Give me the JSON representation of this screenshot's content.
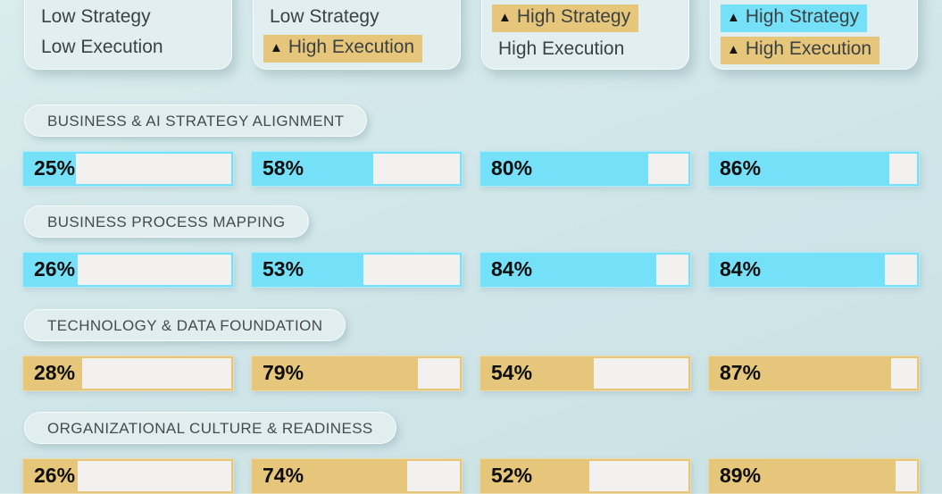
{
  "glyphs": {
    "up_triangle": "▲"
  },
  "colors": {
    "background": "#cfe5e8",
    "gold_highlight": "#e6c67a",
    "cyan_highlight": "#74e1f8",
    "bar_track": "#f2f1ef",
    "card_bg": "#e2eff1",
    "header_text": "#3c4143",
    "percent_text": "#0e0e0e"
  },
  "quadrants": [
    {
      "line1": {
        "text": "Low Strategy",
        "highlight": "none",
        "arrow": false
      },
      "line2": {
        "text": "Low Execution",
        "highlight": "none",
        "arrow": false
      }
    },
    {
      "line1": {
        "text": "Low Strategy",
        "highlight": "none",
        "arrow": false
      },
      "line2": {
        "text": "High Execution",
        "highlight": "gold",
        "arrow": true
      }
    },
    {
      "line1": {
        "text": "High Strategy",
        "highlight": "gold",
        "arrow": true
      },
      "line2": {
        "text": "High Execution",
        "highlight": "none",
        "arrow": false
      }
    },
    {
      "line1": {
        "text": "High Strategy",
        "highlight": "cyan",
        "arrow": true
      },
      "line2": {
        "text": "High Execution",
        "highlight": "gold",
        "arrow": true
      }
    }
  ],
  "sections": [
    {
      "category": "BUSINESS & AI STRATEGY ALIGNMENT",
      "bar_color": "cyan",
      "bars": [
        {
          "label": "25%",
          "value": 25
        },
        {
          "label": "58%",
          "value": 58
        },
        {
          "label": "80%",
          "value": 80
        },
        {
          "label": "86%",
          "value": 86
        }
      ]
    },
    {
      "category": "BUSINESS PROCESS MAPPING",
      "bar_color": "cyan",
      "bars": [
        {
          "label": "26%",
          "value": 26
        },
        {
          "label": "53%",
          "value": 53
        },
        {
          "label": "84%",
          "value": 84
        },
        {
          "label": "84%",
          "value": 84
        }
      ]
    },
    {
      "category": "TECHNOLOGY & DATA FOUNDATION",
      "bar_color": "gold",
      "bars": [
        {
          "label": "28%",
          "value": 28
        },
        {
          "label": "79%",
          "value": 79
        },
        {
          "label": "54%",
          "value": 54
        },
        {
          "label": "87%",
          "value": 87
        }
      ]
    },
    {
      "category": "ORGANIZATIONAL CULTURE & READINESS",
      "bar_color": "gold",
      "bars": [
        {
          "label": "26%",
          "value": 26
        },
        {
          "label": "74%",
          "value": 74
        },
        {
          "label": "52%",
          "value": 52
        },
        {
          "label": "89%",
          "value": 89
        }
      ]
    }
  ],
  "chart_data": {
    "type": "bar",
    "bar_orientation": "horizontal",
    "unit": "%",
    "xlim": [
      0,
      100
    ],
    "categories": [
      "BUSINESS & AI STRATEGY ALIGNMENT",
      "BUSINESS PROCESS MAPPING",
      "TECHNOLOGY & DATA FOUNDATION",
      "ORGANIZATIONAL CULTURE & READINESS"
    ],
    "series": [
      {
        "name": "Low Strategy / Low Execution",
        "values": [
          25,
          26,
          28,
          26
        ]
      },
      {
        "name": "Low Strategy / ▲ High Execution",
        "values": [
          58,
          53,
          79,
          74
        ]
      },
      {
        "name": "▲ High Strategy / High Execution",
        "values": [
          80,
          84,
          54,
          52
        ]
      },
      {
        "name": "▲ High Strategy / ▲ High Execution",
        "values": [
          86,
          84,
          87,
          89
        ]
      }
    ],
    "category_bar_colors": [
      "cyan",
      "cyan",
      "gold",
      "gold"
    ],
    "grid": false,
    "legend_position": "top-as-quadrant-cards"
  }
}
